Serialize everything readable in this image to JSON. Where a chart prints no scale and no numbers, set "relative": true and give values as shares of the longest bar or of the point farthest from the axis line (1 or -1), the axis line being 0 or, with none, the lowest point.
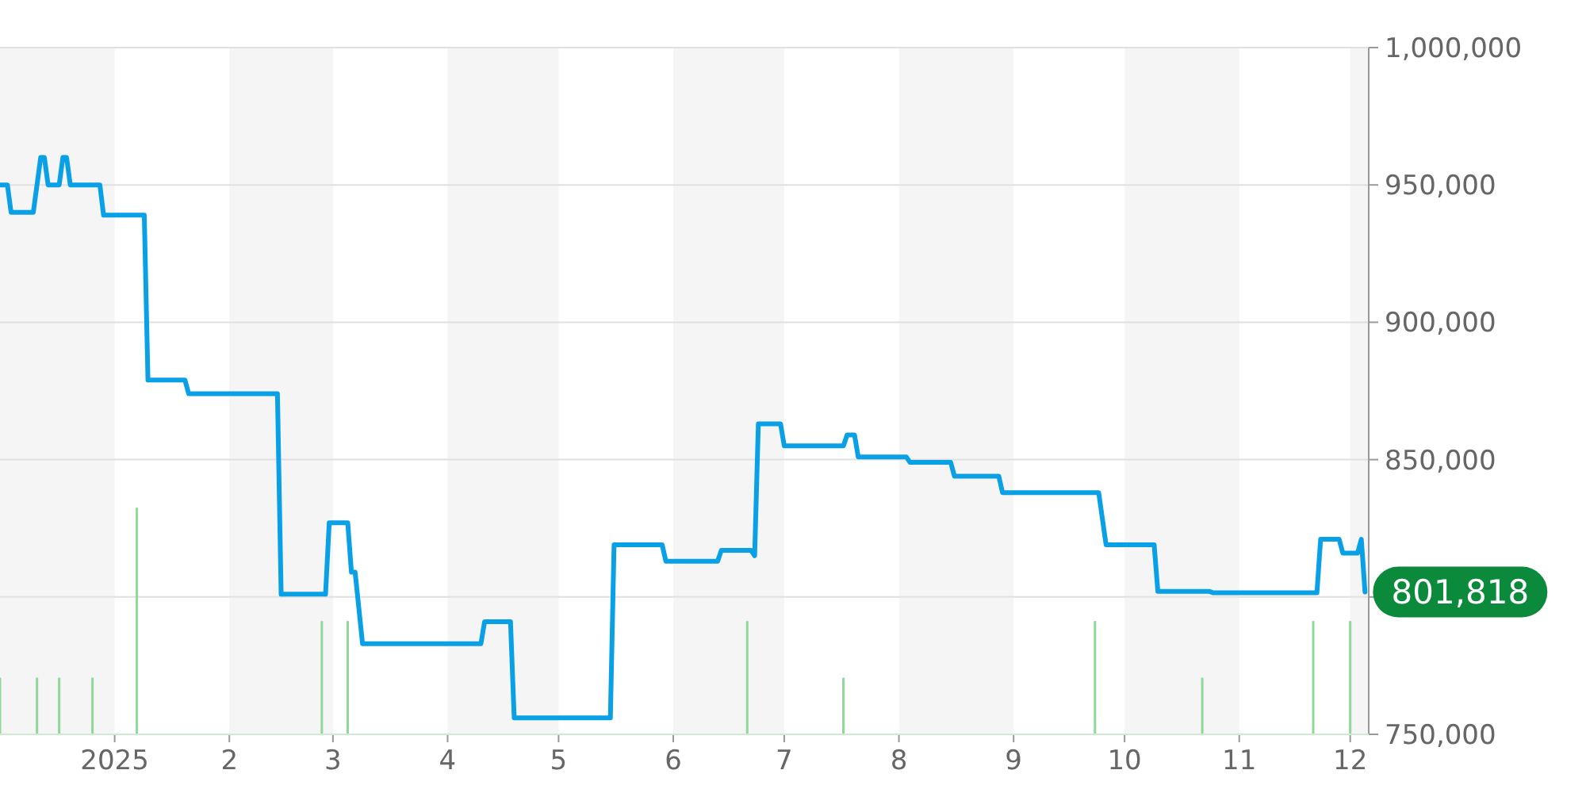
{
  "chart_data": [
    {
      "type": "line",
      "xlim": [
        "2024-12-01",
        "2025-12-06"
      ],
      "ylim": [
        750000,
        1000000
      ],
      "yticks": [
        {
          "value": 750000,
          "label": "750,000"
        },
        {
          "value": 800000,
          "label": null
        },
        {
          "value": 850000,
          "label": "850,000"
        },
        {
          "value": 900000,
          "label": "900,000"
        },
        {
          "value": 950000,
          "label": "950,000"
        },
        {
          "value": 1000000,
          "label": "1,000,000"
        }
      ],
      "xticks": [
        {
          "value": "2025-01-01",
          "label": "2025"
        },
        {
          "value": "2025-02-01",
          "label": "2"
        },
        {
          "value": "2025-03-01",
          "label": "3"
        },
        {
          "value": "2025-04-01",
          "label": "4"
        },
        {
          "value": "2025-05-01",
          "label": "5"
        },
        {
          "value": "2025-06-01",
          "label": "6"
        },
        {
          "value": "2025-07-01",
          "label": "7"
        },
        {
          "value": "2025-08-01",
          "label": "8"
        },
        {
          "value": "2025-09-01",
          "label": "9"
        },
        {
          "value": "2025-10-01",
          "label": "10"
        },
        {
          "value": "2025-11-01",
          "label": "11"
        },
        {
          "value": "2025-12-01",
          "label": "12"
        }
      ],
      "grid": "y",
      "series": [
        {
          "color": "#0aa0e6",
          "x": [
            "2024-12-01",
            "2024-12-03",
            "2024-12-04",
            "2024-12-10",
            "2024-12-12",
            "2024-12-13",
            "2024-12-14",
            "2024-12-17",
            "2024-12-18",
            "2024-12-19",
            "2024-12-20",
            "2024-12-28",
            "2024-12-29",
            "2025-01-09",
            "2025-01-10",
            "2025-01-20",
            "2025-01-21",
            "2025-02-14",
            "2025-02-15",
            "2025-02-27",
            "2025-02-28",
            "2025-03-05",
            "2025-03-06",
            "2025-03-07",
            "2025-03-09",
            "2025-04-10",
            "2025-04-11",
            "2025-04-18",
            "2025-04-19",
            "2025-05-15",
            "2025-05-16",
            "2025-05-29",
            "2025-05-30",
            "2025-06-13",
            "2025-06-14",
            "2025-06-22",
            "2025-06-23",
            "2025-06-24",
            "2025-06-30",
            "2025-07-01",
            "2025-07-17",
            "2025-07-18",
            "2025-07-20",
            "2025-07-21",
            "2025-08-03",
            "2025-08-04",
            "2025-08-15",
            "2025-08-16",
            "2025-08-28",
            "2025-08-29",
            "2025-09-24",
            "2025-09-26",
            "2025-10-09",
            "2025-10-10",
            "2025-10-24",
            "2025-10-25",
            "2025-11-22",
            "2025-11-23",
            "2025-11-28",
            "2025-11-29",
            "2025-12-03",
            "2025-12-04",
            "2025-12-05"
          ],
          "values": [
            950000,
            950000,
            940000,
            940000,
            960000,
            960000,
            950000,
            950000,
            960000,
            960000,
            950000,
            950000,
            939000,
            939000,
            879000,
            879000,
            874000,
            874000,
            801000,
            801000,
            827000,
            827000,
            809000,
            809000,
            783000,
            783000,
            791000,
            791000,
            756000,
            756000,
            819000,
            819000,
            813000,
            813000,
            817000,
            817000,
            815000,
            863000,
            863000,
            855000,
            855000,
            859000,
            859000,
            851000,
            851000,
            849000,
            849000,
            844000,
            844000,
            838000,
            838000,
            819000,
            819000,
            802000,
            802000,
            801500,
            801500,
            821000,
            821000,
            816000,
            816000,
            821000,
            801818
          ]
        }
      ],
      "bands": [
        {
          "axis": "x",
          "from": "2024-12-01",
          "to": "2025-01-01",
          "color": "#f5f5f5"
        },
        {
          "axis": "x",
          "from": "2025-02-01",
          "to": "2025-03-01",
          "color": "#f5f5f5"
        },
        {
          "axis": "x",
          "from": "2025-04-01",
          "to": "2025-05-01",
          "color": "#f5f5f5"
        },
        {
          "axis": "x",
          "from": "2025-06-01",
          "to": "2025-07-01",
          "color": "#f5f5f5"
        },
        {
          "axis": "x",
          "from": "2025-08-01",
          "to": "2025-09-01",
          "color": "#f5f5f5"
        },
        {
          "axis": "x",
          "from": "2025-10-01",
          "to": "2025-11-01",
          "color": "#f5f5f5"
        },
        {
          "axis": "x",
          "from": "2025-12-01",
          "to": "2025-12-06",
          "color": "#f5f5f5"
        }
      ],
      "annotations": [
        {
          "text": "801,818",
          "x": "2025-12-05",
          "y": 801818
        }
      ]
    },
    {
      "type": "bar",
      "relative": true,
      "xlim": [
        "2024-12-01",
        "2025-12-06"
      ],
      "series": [
        {
          "color": "#8fd89a",
          "x": [
            "2024-12-01",
            "2024-12-11",
            "2024-12-17",
            "2024-12-26",
            "2025-01-07",
            "2025-02-26",
            "2025-03-05",
            "2025-06-21",
            "2025-07-17",
            "2025-09-23",
            "2025-10-22",
            "2025-11-21",
            "2025-12-01"
          ],
          "values": [
            0.25,
            0.25,
            0.25,
            0.25,
            1,
            0.5,
            0.5,
            0.5,
            0.25,
            0.5,
            0.25,
            0.5,
            0.5
          ]
        }
      ]
    }
  ]
}
